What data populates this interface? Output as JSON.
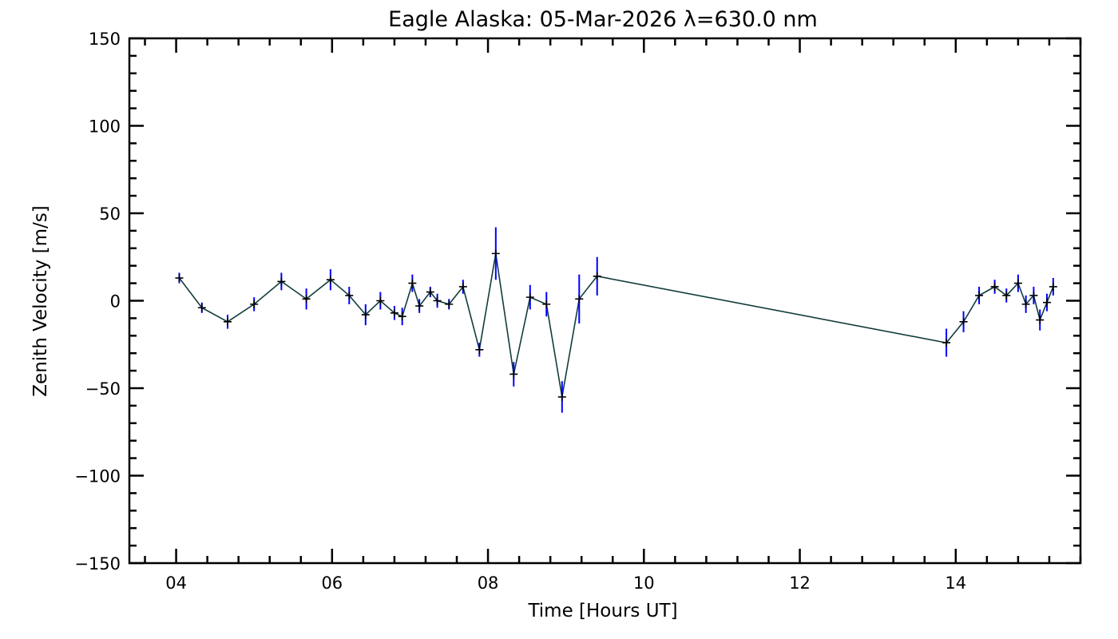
{
  "chart_data": {
    "type": "line",
    "title": "Eagle Alaska: 05-Mar-2026 λ=630.0 nm",
    "xlabel": "Time [Hours UT]",
    "ylabel": "Zenith Velocity [m/s]",
    "xlim": [
      3.4,
      15.6
    ],
    "ylim": [
      -150,
      150
    ],
    "xticks": [
      4,
      6,
      8,
      10,
      12,
      14
    ],
    "xtick_labels": [
      "04",
      "06",
      "08",
      "10",
      "12",
      "14"
    ],
    "yticks": [
      -150,
      -100,
      -50,
      0,
      50,
      100,
      150
    ],
    "ytick_labels": [
      "−150",
      "−100",
      "−50",
      "0",
      "50",
      "100",
      "150"
    ],
    "grid": false,
    "series": [
      {
        "name": "Zenith Velocity",
        "line_color": "#123c3c",
        "marker_color": "#000000",
        "errorbar_color": "#0000ff",
        "points": [
          {
            "x": 4.04,
            "y": 13,
            "err": 3
          },
          {
            "x": 4.33,
            "y": -4,
            "err": 3
          },
          {
            "x": 4.66,
            "y": -12,
            "err": 4
          },
          {
            "x": 5.0,
            "y": -2,
            "err": 4
          },
          {
            "x": 5.35,
            "y": 11,
            "err": 5
          },
          {
            "x": 5.67,
            "y": 1,
            "err": 6
          },
          {
            "x": 5.98,
            "y": 12,
            "err": 6
          },
          {
            "x": 6.22,
            "y": 3,
            "err": 5
          },
          {
            "x": 6.43,
            "y": -8,
            "err": 6
          },
          {
            "x": 6.62,
            "y": 0,
            "err": 5
          },
          {
            "x": 6.8,
            "y": -7,
            "err": 4
          },
          {
            "x": 6.9,
            "y": -9,
            "err": 5
          },
          {
            "x": 7.03,
            "y": 10,
            "err": 5
          },
          {
            "x": 7.12,
            "y": -3,
            "err": 4
          },
          {
            "x": 7.26,
            "y": 5,
            "err": 3
          },
          {
            "x": 7.35,
            "y": 0,
            "err": 4
          },
          {
            "x": 7.5,
            "y": -2,
            "err": 3
          },
          {
            "x": 7.68,
            "y": 8,
            "err": 4
          },
          {
            "x": 7.89,
            "y": -28,
            "err": 4
          },
          {
            "x": 8.1,
            "y": 27,
            "err": 15
          },
          {
            "x": 8.33,
            "y": -42,
            "err": 7
          },
          {
            "x": 8.54,
            "y": 2,
            "err": 7
          },
          {
            "x": 8.75,
            "y": -2,
            "err": 7
          },
          {
            "x": 8.95,
            "y": -55,
            "err": 9
          },
          {
            "x": 9.17,
            "y": 1,
            "err": 14
          },
          {
            "x": 9.4,
            "y": 14,
            "err": 11
          },
          {
            "x": 13.88,
            "y": -24,
            "err": 8
          },
          {
            "x": 14.1,
            "y": -12,
            "err": 6
          },
          {
            "x": 14.3,
            "y": 3,
            "err": 5
          },
          {
            "x": 14.5,
            "y": 8,
            "err": 4
          },
          {
            "x": 14.65,
            "y": 3,
            "err": 4
          },
          {
            "x": 14.8,
            "y": 10,
            "err": 5
          },
          {
            "x": 14.9,
            "y": -2,
            "err": 5
          },
          {
            "x": 15.0,
            "y": 3,
            "err": 5
          },
          {
            "x": 15.08,
            "y": -11,
            "err": 6
          },
          {
            "x": 15.17,
            "y": -1,
            "err": 5
          },
          {
            "x": 15.25,
            "y": 8,
            "err": 5
          }
        ]
      }
    ]
  }
}
